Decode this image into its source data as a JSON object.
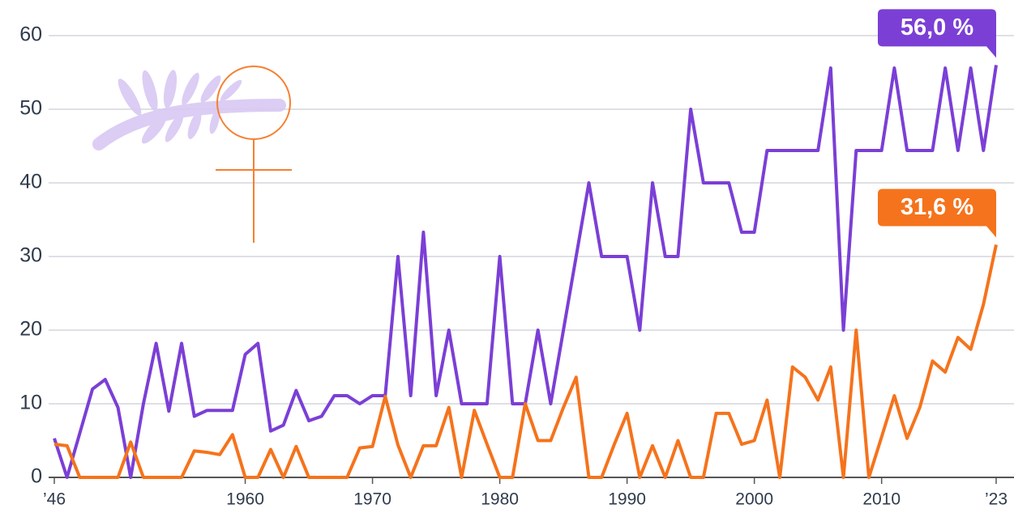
{
  "chart_data": {
    "type": "line",
    "categories": [
      "’46",
      null,
      null,
      null,
      null,
      null,
      null,
      null,
      null,
      null,
      null,
      null,
      null,
      null,
      null,
      "1960",
      null,
      null,
      null,
      null,
      null,
      null,
      null,
      null,
      null,
      "1970",
      null,
      null,
      null,
      null,
      null,
      null,
      null,
      null,
      null,
      "1980",
      null,
      null,
      null,
      null,
      null,
      null,
      null,
      null,
      null,
      "1990",
      null,
      null,
      null,
      null,
      null,
      null,
      null,
      null,
      null,
      "2000",
      null,
      null,
      null,
      null,
      null,
      null,
      null,
      null,
      null,
      "2010",
      null,
      null,
      null,
      null,
      null,
      null,
      null,
      null,
      "’23"
    ],
    "series": [
      {
        "color": "#7b3fd6",
        "values": [
          5.3,
          0,
          6,
          12,
          13.3,
          9.5,
          0,
          10,
          18.2,
          9,
          18.2,
          8.3,
          9.1,
          9.1,
          9.1,
          16.7,
          18.2,
          6.3,
          7.1,
          11.8,
          7.7,
          8.3,
          11.1,
          11.1,
          10,
          11.1,
          11.1,
          30,
          11.1,
          33.3,
          11.1,
          20,
          10,
          10,
          10,
          30,
          10,
          10,
          20,
          10,
          20,
          30,
          40,
          30,
          30,
          30,
          20,
          40,
          30,
          30,
          50,
          40,
          40,
          40,
          33.3,
          33.3,
          44.4,
          44.4,
          44.4,
          44.4,
          44.4,
          55.6,
          20,
          44.4,
          44.4,
          44.4,
          55.6,
          44.4,
          44.4,
          44.4,
          55.6,
          44.4,
          55.6,
          44.4,
          56
        ],
        "value_labels": [
          null,
          null,
          null,
          null,
          null,
          null,
          null,
          null,
          null,
          null,
          null,
          null,
          null,
          null,
          null,
          null,
          null,
          null,
          null,
          null,
          null,
          null,
          null,
          null,
          null,
          null,
          null,
          null,
          null,
          null,
          null,
          null,
          null,
          null,
          null,
          null,
          null,
          null,
          null,
          null,
          null,
          null,
          null,
          null,
          null,
          null,
          null,
          null,
          null,
          null,
          null,
          null,
          null,
          null,
          null,
          null,
          null,
          null,
          null,
          null,
          null,
          null,
          null,
          null,
          null,
          null,
          null,
          null,
          null,
          null,
          null,
          null,
          null,
          null,
          "56,0 %"
        ]
      },
      {
        "color": "#f5731c",
        "values": [
          4.5,
          4.3,
          0,
          0,
          0,
          0,
          4.8,
          0,
          0,
          0,
          0,
          3.6,
          3.4,
          3.1,
          5.8,
          0,
          0,
          3.8,
          0,
          4.2,
          0,
          0,
          0,
          0,
          4,
          4.2,
          11,
          4.4,
          0,
          4.3,
          4.3,
          9.5,
          0,
          9.1,
          4.5,
          0,
          0,
          10,
          5,
          5,
          9.5,
          13.6,
          0,
          0,
          4.5,
          8.7,
          0,
          4.3,
          0,
          5,
          0,
          0,
          8.7,
          8.7,
          4.5,
          5,
          10.5,
          0,
          15,
          13.6,
          10.5,
          15,
          0,
          20,
          0,
          5.5,
          11.1,
          5.3,
          9.5,
          15.8,
          14.3,
          19,
          17.4,
          23.5,
          31.6
        ],
        "value_labels": [
          null,
          null,
          null,
          null,
          null,
          null,
          null,
          null,
          null,
          null,
          null,
          null,
          null,
          null,
          null,
          null,
          null,
          null,
          null,
          null,
          null,
          null,
          null,
          null,
          null,
          null,
          null,
          null,
          null,
          null,
          null,
          null,
          null,
          null,
          null,
          null,
          null,
          null,
          null,
          null,
          null,
          null,
          null,
          null,
          null,
          null,
          null,
          null,
          null,
          null,
          null,
          null,
          null,
          null,
          null,
          null,
          null,
          null,
          null,
          null,
          null,
          null,
          null,
          null,
          null,
          null,
          null,
          null,
          null,
          null,
          null,
          null,
          null,
          null,
          "31,6 %"
        ]
      }
    ],
    "ylim": [
      0,
      60
    ],
    "yticks": [
      0,
      10,
      20,
      30,
      40,
      50,
      60
    ],
    "grid": true
  }
}
